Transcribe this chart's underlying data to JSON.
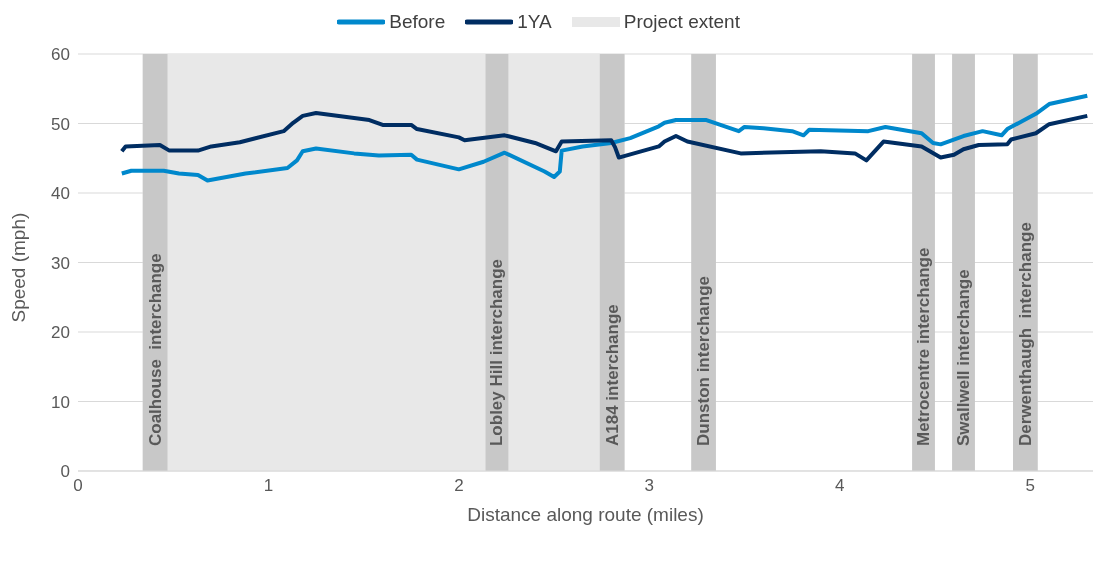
{
  "chart_data": {
    "type": "line",
    "xlabel": "Distance along route (miles)",
    "ylabel": "Speed (mph)",
    "xlim": [
      0,
      5.33
    ],
    "xticks": [
      0,
      1,
      2,
      3,
      4,
      5
    ],
    "ylim": [
      0,
      60
    ],
    "yticks": [
      0,
      10,
      20,
      30,
      40,
      50,
      60
    ],
    "grid": "y",
    "legend": "top",
    "line_style": "solid",
    "marker": "none",
    "series": [
      {
        "name": "Before",
        "color": "#0088cc",
        "x": [
          0.23,
          0.28,
          0.45,
          0.53,
          0.63,
          0.68,
          0.88,
          1.1,
          1.15,
          1.18,
          1.25,
          1.45,
          1.58,
          1.75,
          1.78,
          2.0,
          2.13,
          2.24,
          2.45,
          2.5,
          2.53,
          2.54,
          2.65,
          2.8,
          2.9,
          3.05,
          3.08,
          3.14,
          3.3,
          3.47,
          3.5,
          3.6,
          3.75,
          3.81,
          3.84,
          4.15,
          4.24,
          4.43,
          4.49,
          4.53,
          4.65,
          4.75,
          4.85,
          4.88,
          5.03,
          5.1,
          5.3
        ],
        "values": [
          42.8,
          43.2,
          43.2,
          42.8,
          42.6,
          41.8,
          42.8,
          43.6,
          44.7,
          46.0,
          46.4,
          45.7,
          45.4,
          45.5,
          44.8,
          43.4,
          44.5,
          45.8,
          43.1,
          42.3,
          43.1,
          46.1,
          46.7,
          47.2,
          47.9,
          49.6,
          50.1,
          50.5,
          50.5,
          48.9,
          49.5,
          49.3,
          48.9,
          48.3,
          49.1,
          48.9,
          49.5,
          48.6,
          47.2,
          47.0,
          48.2,
          48.9,
          48.3,
          49.2,
          51.4,
          52.8,
          54.0
        ]
      },
      {
        "name": "1YA",
        "color": "#002d62",
        "x": [
          0.23,
          0.25,
          0.43,
          0.48,
          0.63,
          0.7,
          0.85,
          1.08,
          1.13,
          1.18,
          1.25,
          1.53,
          1.6,
          1.75,
          1.78,
          2.0,
          2.03,
          2.24,
          2.4,
          2.51,
          2.54,
          2.8,
          2.82,
          2.84,
          3.05,
          3.08,
          3.14,
          3.2,
          3.48,
          3.9,
          4.08,
          4.14,
          4.23,
          4.43,
          4.53,
          4.6,
          4.65,
          4.73,
          4.88,
          4.9,
          5.03,
          5.1,
          5.3
        ],
        "values": [
          46.0,
          46.7,
          46.9,
          46.1,
          46.1,
          46.7,
          47.3,
          48.9,
          50.1,
          51.1,
          51.5,
          50.5,
          49.8,
          49.8,
          49.2,
          48.0,
          47.6,
          48.3,
          47.2,
          46.0,
          47.4,
          47.6,
          46.6,
          45.1,
          46.7,
          47.4,
          48.2,
          47.4,
          45.7,
          46.0,
          45.7,
          44.7,
          47.4,
          46.7,
          45.1,
          45.5,
          46.3,
          46.9,
          47.0,
          47.7,
          48.6,
          49.9,
          51.1
        ]
      }
    ],
    "bands": [
      {
        "axis": "x",
        "from": 0.34,
        "to": 2.87,
        "label": "Project extent",
        "color": "#e8e8e8"
      },
      {
        "axis": "x",
        "from": 0.34,
        "to": 0.47,
        "label": "Coalhouse  interchange",
        "color": "#c8c8c8"
      },
      {
        "axis": "x",
        "from": 2.14,
        "to": 2.26,
        "label": "Lobley Hill interchange",
        "color": "#c8c8c8"
      },
      {
        "axis": "x",
        "from": 2.74,
        "to": 2.87,
        "label": "A184 interchange",
        "color": "#c8c8c8"
      },
      {
        "axis": "x",
        "from": 3.22,
        "to": 3.35,
        "label": "Dunston interchange",
        "color": "#c8c8c8"
      },
      {
        "axis": "x",
        "from": 4.38,
        "to": 4.5,
        "label": "Metrocentre interchange",
        "color": "#c8c8c8"
      },
      {
        "axis": "x",
        "from": 4.59,
        "to": 4.71,
        "label": "Swallwell interchange",
        "color": "#c8c8c8"
      },
      {
        "axis": "x",
        "from": 4.91,
        "to": 5.04,
        "label": "Derwenthaugh  interchange",
        "color": "#c8c8c8"
      }
    ]
  }
}
